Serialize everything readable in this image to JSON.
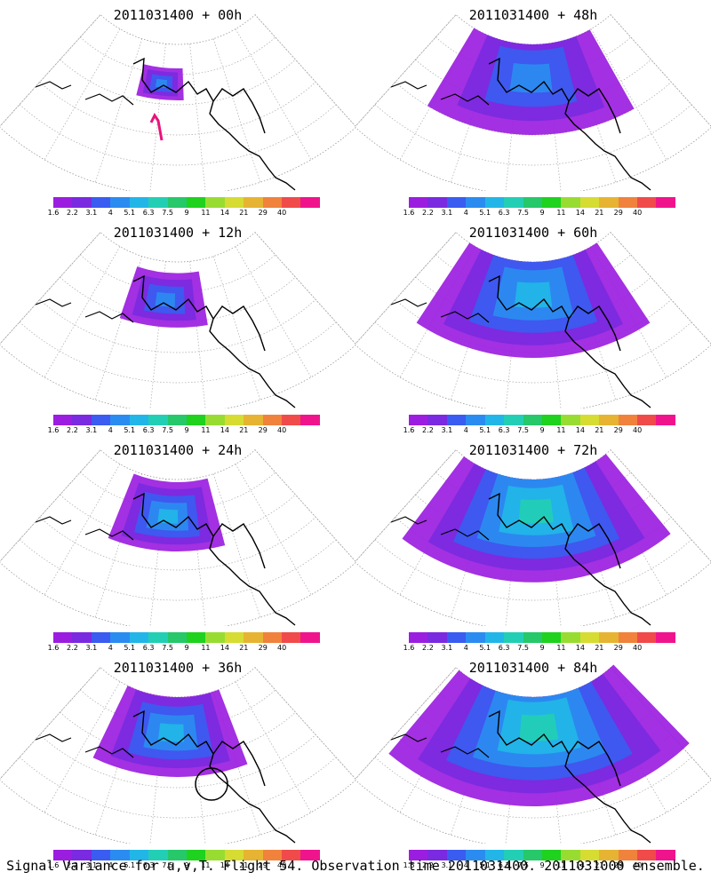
{
  "panels": [
    {
      "title": "2011031400 + 00h",
      "spread": 0.0,
      "intensity": 0.35,
      "arrow": true,
      "circle": false
    },
    {
      "title": "2011031400 + 12h",
      "spread": 0.18,
      "intensity": 0.45,
      "arrow": false,
      "circle": false
    },
    {
      "title": "2011031400 + 24h",
      "spread": 0.3,
      "intensity": 0.5,
      "arrow": false,
      "circle": false
    },
    {
      "title": "2011031400 + 36h",
      "spread": 0.45,
      "intensity": 0.55,
      "arrow": false,
      "circle": true
    },
    {
      "title": "2011031400 + 48h",
      "spread": 0.65,
      "intensity": 0.45,
      "arrow": false,
      "circle": false
    },
    {
      "title": "2011031400 + 60h",
      "spread": 0.75,
      "intensity": 0.6,
      "arrow": false,
      "circle": false
    },
    {
      "title": "2011031400 + 72h",
      "spread": 0.88,
      "intensity": 0.7,
      "arrow": false,
      "circle": false
    },
    {
      "title": "2011031400 + 84h",
      "spread": 1.0,
      "intensity": 0.8,
      "arrow": false,
      "circle": false
    }
  ],
  "colorbar": {
    "labels": [
      "1.6",
      "2.2",
      "3.1",
      "4",
      "5.1",
      "6.3",
      "7.5",
      "9",
      "11",
      "14",
      "21",
      "29",
      "40"
    ],
    "colors": [
      "#9b1ee0",
      "#7a2ae0",
      "#3a5cf0",
      "#2a8cf0",
      "#22b6e8",
      "#22cfb4",
      "#26c86a",
      "#1ed21e",
      "#98dc32",
      "#d6dc32",
      "#e6b432",
      "#f0823c",
      "#f04a4a",
      "#f0148c"
    ]
  },
  "footer": "Signal Variance for u,v,T. Flight 54. Observation time 2011031400. 2011031000 ensemble."
}
